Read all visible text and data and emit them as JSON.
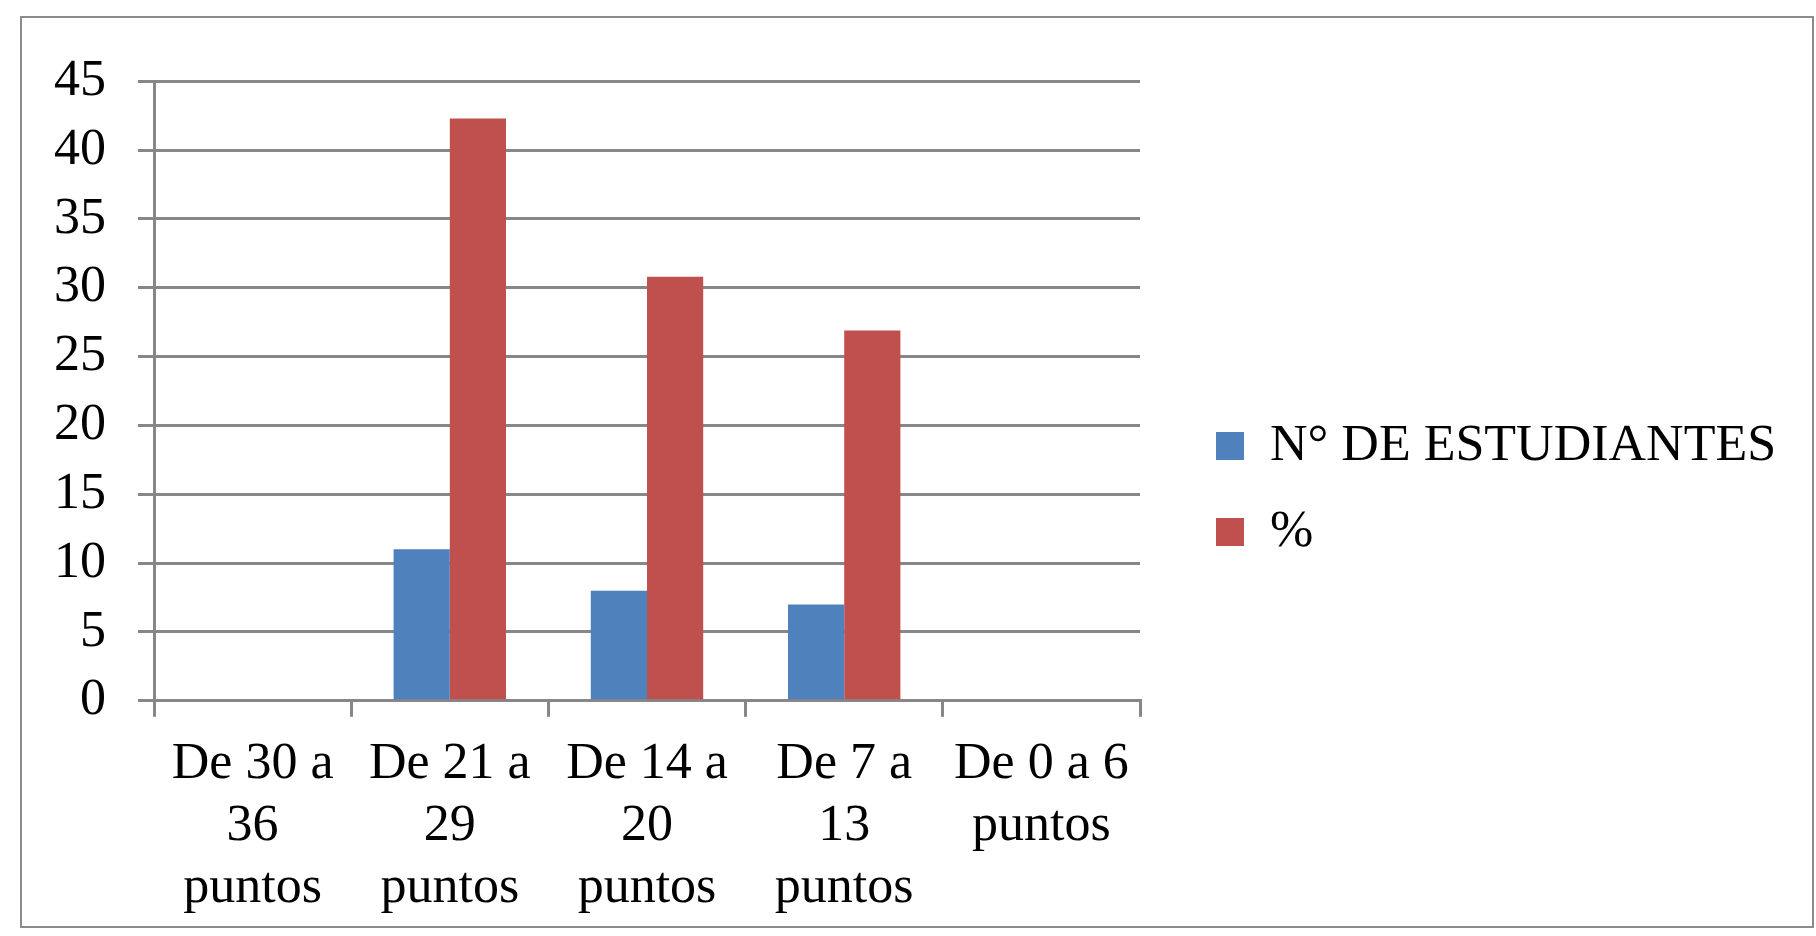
{
  "chart_data": {
    "type": "bar",
    "categories": [
      "De 30 a 36 puntos",
      "De 21 a 29 puntos",
      "De 14 a 20 puntos",
      "De 7 a 13 puntos",
      "De 0 a 6 puntos"
    ],
    "series": [
      {
        "name": "N° DE ESTUDIANTES",
        "color": "#4f81bd",
        "values": [
          0,
          11,
          8,
          7,
          0
        ]
      },
      {
        "name": "%",
        "color": "#c0504d",
        "values": [
          0,
          42.3,
          30.8,
          26.9,
          0
        ]
      }
    ],
    "ylim": [
      0,
      45
    ],
    "yticks": [
      0,
      5,
      10,
      15,
      20,
      25,
      30,
      35,
      40,
      45
    ],
    "grid": "y",
    "legend": "right"
  }
}
